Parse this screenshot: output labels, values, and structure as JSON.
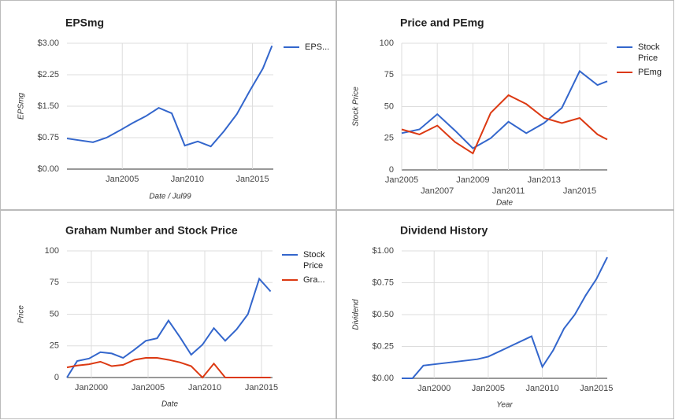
{
  "chart_data": [
    {
      "type": "line",
      "title": "EPSmg",
      "x_label": "Date / Jul99",
      "y_label": "EPSmg",
      "x": [
        2000.75,
        2002.75,
        2003.8,
        2004.8,
        2005.8,
        2006.8,
        2007.8,
        2008.8,
        2009.8,
        2010.8,
        2011.8,
        2012.8,
        2013.8,
        2014.8,
        2015.8,
        2016.5
      ],
      "series": [
        {
          "name": "EPS...",
          "color": "#3366cc",
          "values": [
            0.73,
            0.64,
            0.75,
            0.92,
            1.1,
            1.26,
            1.46,
            1.33,
            0.56,
            0.66,
            0.54,
            0.9,
            1.31,
            1.87,
            2.4,
            2.94
          ]
        }
      ],
      "xlim": [
        2000.75,
        2016.6
      ],
      "xticks": [
        {
          "value": 2005,
          "label": "Jan2005"
        },
        {
          "value": 2010,
          "label": "Jan2010"
        },
        {
          "value": 2015,
          "label": "Jan2015"
        }
      ],
      "ylim": [
        0,
        3
      ],
      "yticks": [
        {
          "value": 0,
          "label": "$0.00"
        },
        {
          "value": 0.75,
          "label": "$0.75"
        },
        {
          "value": 1.5,
          "label": "$1.50"
        },
        {
          "value": 2.25,
          "label": "$2.25"
        },
        {
          "value": 3,
          "label": "$3.00"
        }
      ],
      "grid": true,
      "legend": "right"
    },
    {
      "type": "line",
      "title": "Price and PEmg",
      "x_label": "Date",
      "y_label": "Stock Price",
      "x": [
        2005,
        2006,
        2007,
        2008,
        2009,
        2010,
        2011,
        2012,
        2013,
        2014,
        2015,
        2016,
        2016.55
      ],
      "series": [
        {
          "name": "Stock Price",
          "color": "#3366cc",
          "values": [
            29,
            32,
            44,
            31,
            17,
            25,
            38,
            29,
            37,
            49,
            78,
            67,
            70
          ]
        },
        {
          "name": "PEmg",
          "color": "#dc3912",
          "values": [
            32,
            28,
            35,
            22,
            13,
            45,
            59,
            52,
            41,
            37,
            41,
            28,
            24
          ]
        }
      ],
      "xlim": [
        2005,
        2016.55
      ],
      "xticks": [
        {
          "value": 2005,
          "label": "Jan2005"
        },
        {
          "value": 2007,
          "label": "Jan2007"
        },
        {
          "value": 2009,
          "label": "Jan2009"
        },
        {
          "value": 2011,
          "label": "Jan2011"
        },
        {
          "value": 2013,
          "label": "Jan2013"
        },
        {
          "value": 2015,
          "label": "Jan2015"
        }
      ],
      "ylim": [
        0,
        100
      ],
      "yticks": [
        0,
        25,
        50,
        75,
        100
      ],
      "grid": true,
      "legend": "right"
    },
    {
      "type": "line",
      "title": "Graham Number and Stock Price",
      "x_label": "Date",
      "y_label": "Price",
      "x": [
        1997.85,
        1998.75,
        1999.8,
        2000.8,
        2001.8,
        2002.8,
        2003.8,
        2004.8,
        2005.8,
        2006.8,
        2007.8,
        2008.8,
        2009.8,
        2010.8,
        2011.8,
        2012.8,
        2013.8,
        2014.8,
        2015.8
      ],
      "series": [
        {
          "name": "Stock Price",
          "color": "#3366cc",
          "values": [
            0,
            13,
            15,
            20,
            19,
            15.5,
            22,
            29,
            31,
            45,
            32,
            18,
            26,
            39,
            29,
            38,
            50,
            78,
            68
          ]
        },
        {
          "name": "Gra...",
          "color": "#dc3912",
          "values": [
            8,
            9.5,
            10.5,
            12.5,
            9,
            10,
            14,
            15.5,
            15.5,
            14,
            12,
            9,
            0,
            11,
            0,
            0,
            0,
            0,
            0
          ]
        }
      ],
      "xlim": [
        1997.85,
        2015.97
      ],
      "xticks": [
        {
          "value": 2000,
          "label": "Jan2000"
        },
        {
          "value": 2005,
          "label": "Jan2005"
        },
        {
          "value": 2010,
          "label": "Jan2010"
        },
        {
          "value": 2015,
          "label": "Jan2015"
        }
      ],
      "ylim": [
        0,
        100
      ],
      "yticks": [
        0,
        25,
        50,
        75,
        100
      ],
      "grid": true,
      "legend": "right"
    },
    {
      "type": "line",
      "title": "Dividend History",
      "x_label": "Year",
      "y_label": "Dividend",
      "x": [
        1997,
        1998,
        1999,
        2004,
        2005,
        2007,
        2009,
        2010,
        2011,
        2012,
        2013,
        2014,
        2015,
        2016
      ],
      "series": [
        {
          "color": "#3366cc",
          "values": [
            0,
            0,
            0.1,
            0.15,
            0.17,
            0.25,
            0.33,
            0.09,
            0.22,
            0.39,
            0.5,
            0.65,
            0.78,
            0.95
          ]
        }
      ],
      "xlim": [
        1997,
        2016
      ],
      "xticks": [
        {
          "value": 2000,
          "label": "Jan2000"
        },
        {
          "value": 2005,
          "label": "Jan2005"
        },
        {
          "value": 2010,
          "label": "Jan2010"
        },
        {
          "value": 2015,
          "label": "Jan2015"
        }
      ],
      "ylim": [
        0,
        1
      ],
      "yticks": [
        {
          "value": 0,
          "label": "$0.00"
        },
        {
          "value": 0.25,
          "label": "$0.25"
        },
        {
          "value": 0.5,
          "label": "$0.50"
        },
        {
          "value": 0.75,
          "label": "$0.75"
        },
        {
          "value": 1,
          "label": "$1.00"
        }
      ],
      "grid": true
    }
  ]
}
